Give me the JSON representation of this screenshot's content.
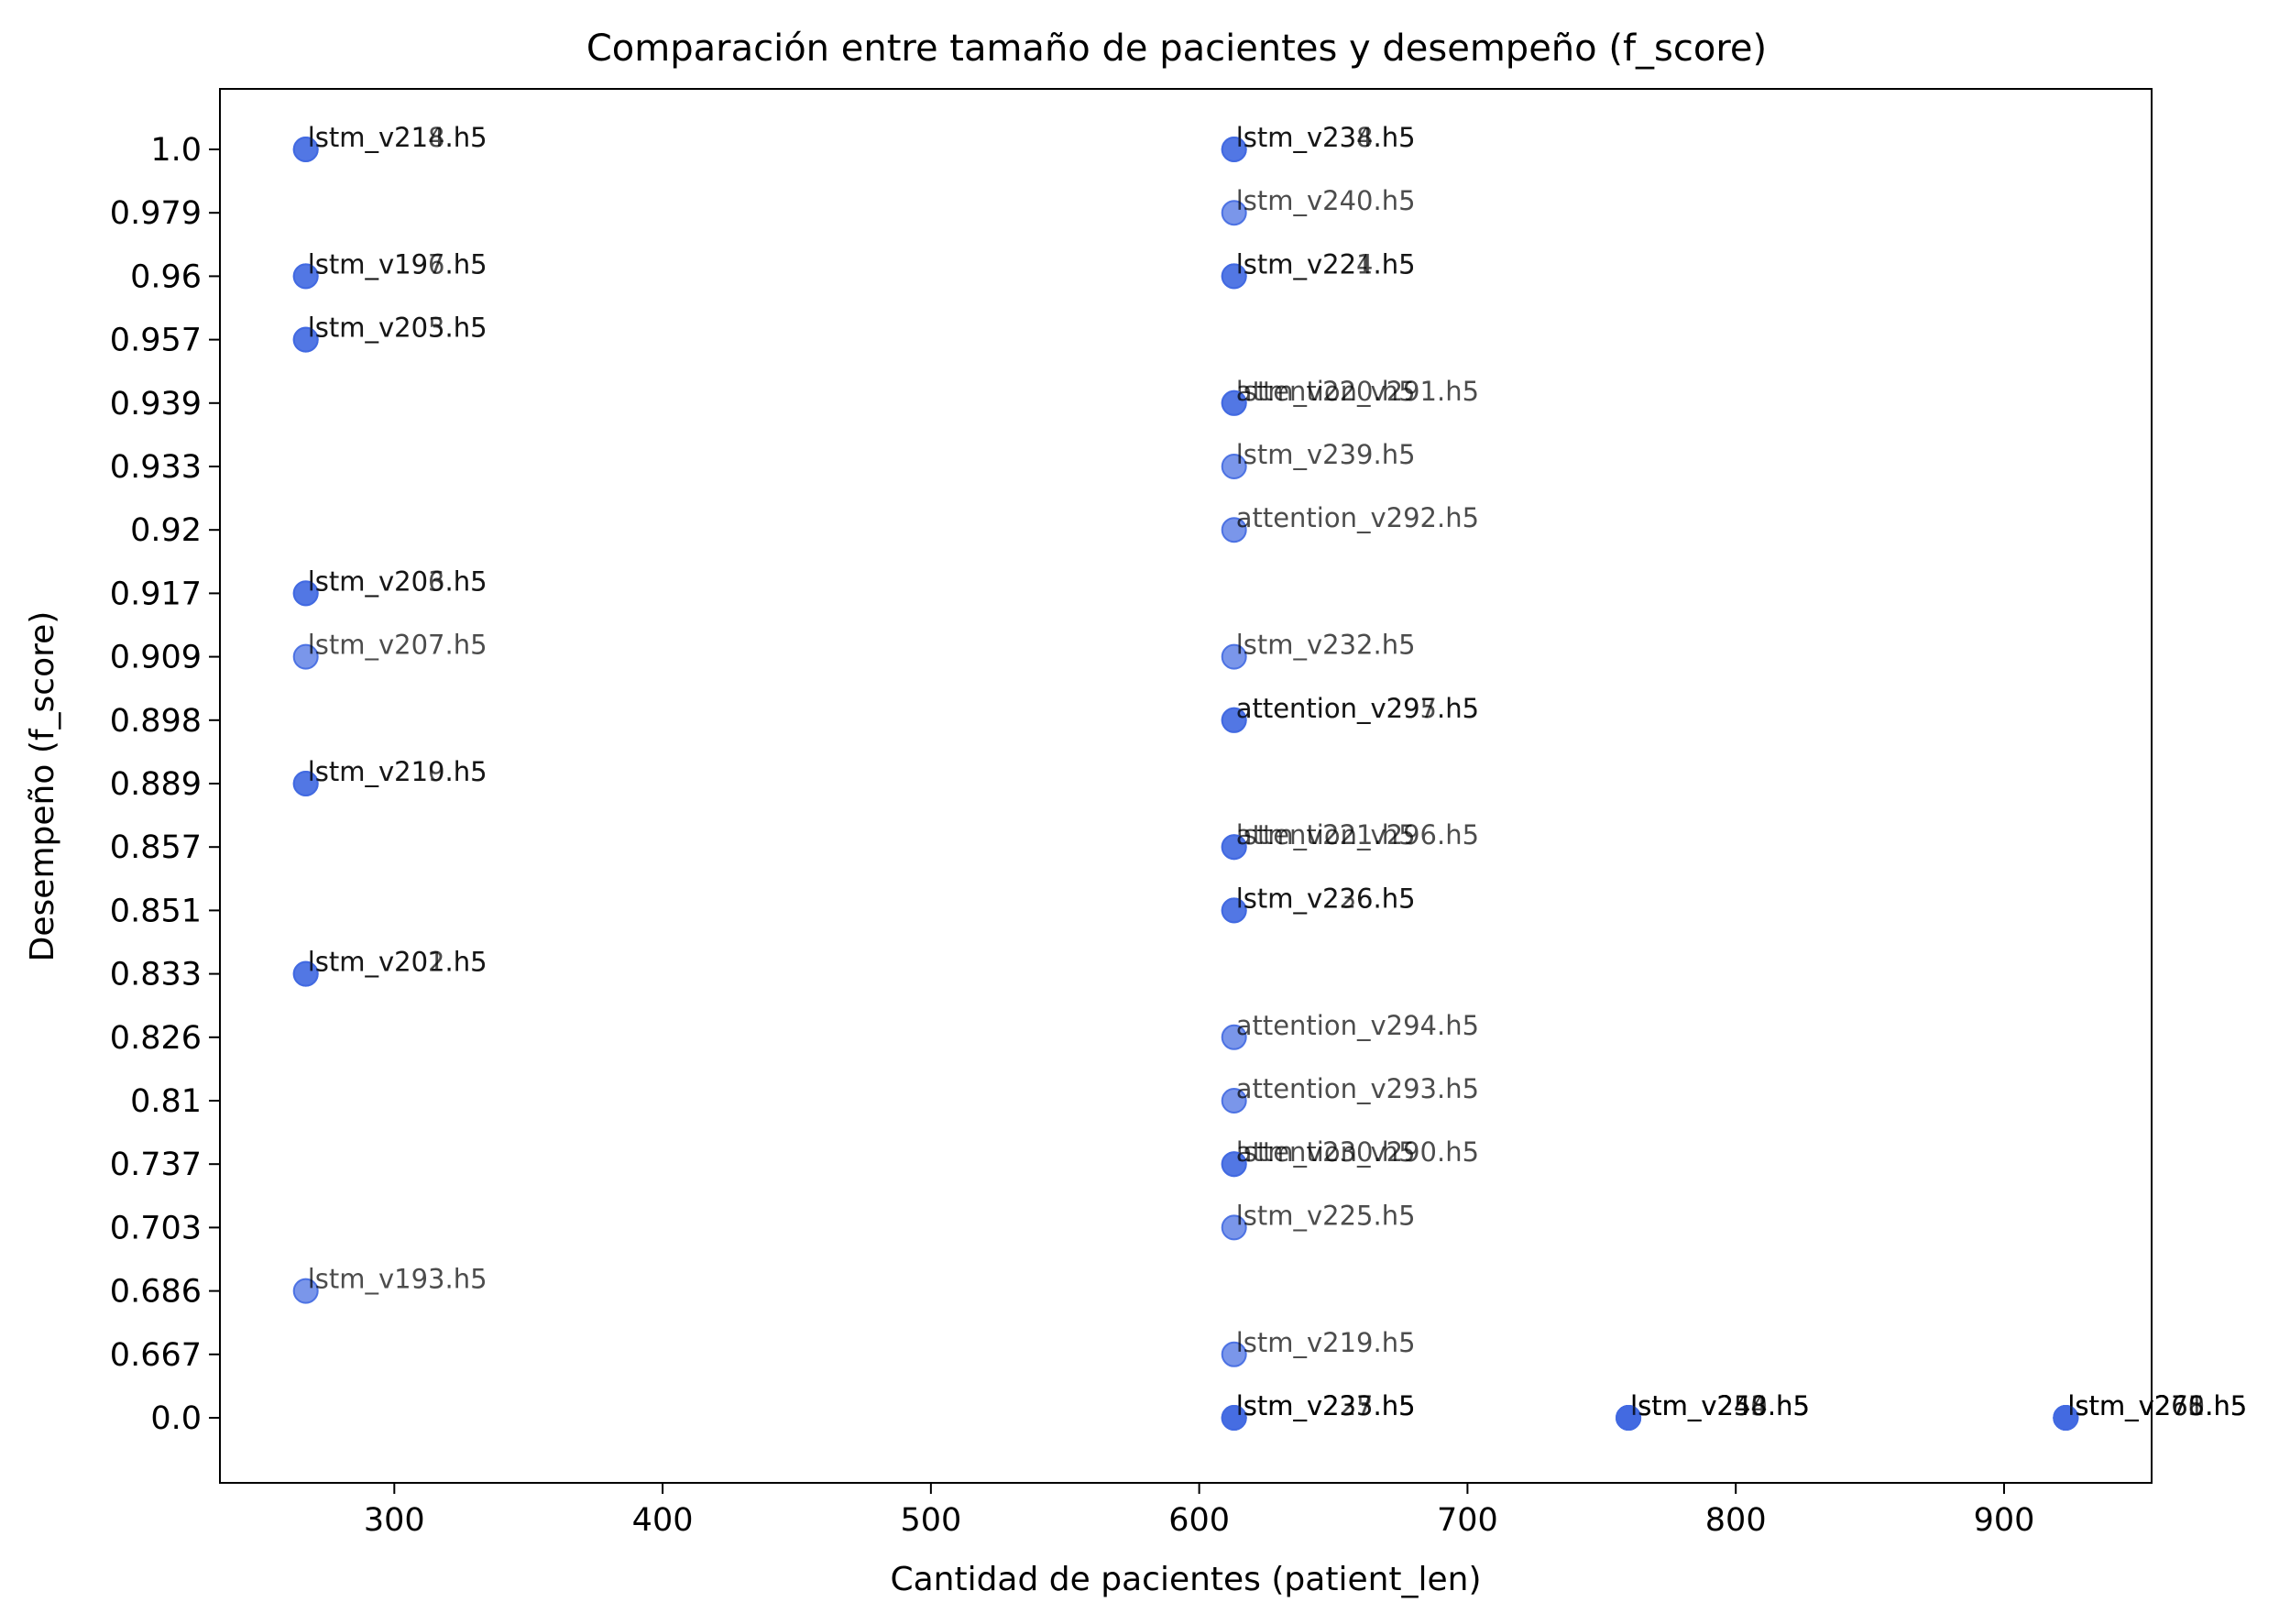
{
  "chart_data": {
    "type": "scatter",
    "title": "Comparación entre tamaño de pacientes y desempeño (f_score)",
    "xlabel": "Cantidad de pacientes (patient_len)",
    "ylabel": "Desempeño (f_score)",
    "xlim": [
      235,
      955
    ],
    "x_ticks": [
      300,
      400,
      500,
      600,
      700,
      800,
      900
    ],
    "y_is_categorical": true,
    "y_categories": [
      "0.0",
      "0.667",
      "0.686",
      "0.703",
      "0.737",
      "0.81",
      "0.826",
      "0.833",
      "0.851",
      "0.857",
      "0.889",
      "0.898",
      "0.909",
      "0.917",
      "0.92",
      "0.933",
      "0.939",
      "0.957",
      "0.96",
      "0.979",
      "1.0"
    ],
    "marker_color": "#4169e1",
    "grid": false,
    "legend": "none",
    "points": [
      {
        "x": 267,
        "y": "1.0",
        "label": "lstm_v218.h5",
        "alpha": 0.7
      },
      {
        "x": 267,
        "y": "1.0",
        "label": "lstm_v214.h5",
        "alpha": 0.7
      },
      {
        "x": 267,
        "y": "0.96",
        "label": "lstm_v196.h5",
        "alpha": 0.7
      },
      {
        "x": 267,
        "y": "0.96",
        "label": "lstm_v197.h5",
        "alpha": 0.7
      },
      {
        "x": 267,
        "y": "0.957",
        "label": "lstm_v203.h5",
        "alpha": 0.7
      },
      {
        "x": 267,
        "y": "0.957",
        "label": "lstm_v205.h5",
        "alpha": 0.7
      },
      {
        "x": 267,
        "y": "0.917",
        "label": "lstm_v203.h5",
        "alpha": 0.7
      },
      {
        "x": 267,
        "y": "0.917",
        "label": "lstm_v206.h5",
        "alpha": 0.7
      },
      {
        "x": 267,
        "y": "0.909",
        "label": "lstm_v207.h5",
        "alpha": 0.7
      },
      {
        "x": 267,
        "y": "0.889",
        "label": "lstm_v210.h5",
        "alpha": 0.7
      },
      {
        "x": 267,
        "y": "0.889",
        "label": "lstm_v219.h5",
        "alpha": 0.7
      },
      {
        "x": 267,
        "y": "0.833",
        "label": "lstm_v201.h5",
        "alpha": 0.7
      },
      {
        "x": 267,
        "y": "0.833",
        "label": "lstm_v202.h5",
        "alpha": 0.7
      },
      {
        "x": 267,
        "y": "0.686",
        "label": "lstm_v193.h5",
        "alpha": 0.7
      },
      {
        "x": 613,
        "y": "1.0",
        "label": "lstm_v234.h5",
        "alpha": 0.7
      },
      {
        "x": 613,
        "y": "1.0",
        "label": "lstm_v238.h5",
        "alpha": 0.7
      },
      {
        "x": 613,
        "y": "0.979",
        "label": "lstm_v240.h5",
        "alpha": 0.7
      },
      {
        "x": 613,
        "y": "0.96",
        "label": "lstm_v221.h5",
        "alpha": 0.7
      },
      {
        "x": 613,
        "y": "0.96",
        "label": "lstm_v224.h5",
        "alpha": 0.7
      },
      {
        "x": 613,
        "y": "0.939",
        "label": "lstm_v220.h5",
        "alpha": 0.7
      },
      {
        "x": 613,
        "y": "0.939",
        "label": "attention_v291.h5",
        "alpha": 0.7
      },
      {
        "x": 613,
        "y": "0.933",
        "label": "lstm_v239.h5",
        "alpha": 0.7
      },
      {
        "x": 613,
        "y": "0.92",
        "label": "attention_v292.h5",
        "alpha": 0.7
      },
      {
        "x": 613,
        "y": "0.909",
        "label": "lstm_v232.h5",
        "alpha": 0.7
      },
      {
        "x": 613,
        "y": "0.898",
        "label": "attention_v295.h5",
        "alpha": 0.7
      },
      {
        "x": 613,
        "y": "0.898",
        "label": "attention_v297.h5",
        "alpha": 0.7
      },
      {
        "x": 613,
        "y": "0.857",
        "label": "lstm_v221.h5",
        "alpha": 0.7
      },
      {
        "x": 613,
        "y": "0.857",
        "label": "attention_v296.h5",
        "alpha": 0.7
      },
      {
        "x": 613,
        "y": "0.851",
        "label": "lstm_v226.h5",
        "alpha": 0.7
      },
      {
        "x": 613,
        "y": "0.851",
        "label": "lstm_v236.h5",
        "alpha": 0.7
      },
      {
        "x": 613,
        "y": "0.826",
        "label": "attention_v294.h5",
        "alpha": 0.7
      },
      {
        "x": 613,
        "y": "0.81",
        "label": "attention_v293.h5",
        "alpha": 0.7
      },
      {
        "x": 613,
        "y": "0.737",
        "label": "lstm_v230.h5",
        "alpha": 0.7
      },
      {
        "x": 613,
        "y": "0.737",
        "label": "attention_v290.h5",
        "alpha": 0.7
      },
      {
        "x": 613,
        "y": "0.703",
        "label": "lstm_v225.h5",
        "alpha": 0.7
      },
      {
        "x": 613,
        "y": "0.667",
        "label": "lstm_v219.h5",
        "alpha": 0.7
      },
      {
        "x": 613,
        "y": "0.0",
        "label": "lstm_v227.h5",
        "alpha": 0.7
      },
      {
        "x": 613,
        "y": "0.0",
        "label": "lstm_v233.h5",
        "alpha": 0.7
      },
      {
        "x": 613,
        "y": "0.0",
        "label": "lstm_v235.h5",
        "alpha": 0.7
      },
      {
        "x": 760,
        "y": "0.0",
        "label": "lstm_v244.h5",
        "alpha": 0.7
      },
      {
        "x": 760,
        "y": "0.0",
        "label": "lstm_v248.h5",
        "alpha": 0.7
      },
      {
        "x": 760,
        "y": "0.0",
        "label": "lstm_v250.h5",
        "alpha": 0.7
      },
      {
        "x": 760,
        "y": "0.0",
        "label": "lstm_v253.h5",
        "alpha": 0.7
      },
      {
        "x": 923,
        "y": "0.0",
        "label": "lstm_v260.h5",
        "alpha": 0.7
      },
      {
        "x": 923,
        "y": "0.0",
        "label": "lstm_v268.h5",
        "alpha": 0.7
      },
      {
        "x": 923,
        "y": "0.0",
        "label": "lstm_v271.h5",
        "alpha": 0.7
      },
      {
        "x": 923,
        "y": "0.0",
        "label": "lstm_v275.h5",
        "alpha": 0.7
      }
    ]
  }
}
